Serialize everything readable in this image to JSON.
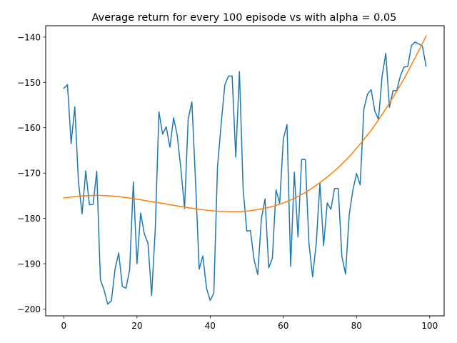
{
  "chart_data": {
    "type": "line",
    "title": "Average return for every 100 episode vs with alpha = 0.05",
    "xlabel": "",
    "ylabel": "",
    "xlim": [
      -4.95,
      103.95
    ],
    "ylim": [
      -201.5,
      -137.5
    ],
    "xticks": [
      0,
      20,
      40,
      60,
      80,
      100
    ],
    "yticks": [
      -200,
      -190,
      -180,
      -170,
      -160,
      -150,
      -140
    ],
    "grid": false,
    "legend": "none",
    "series": [
      {
        "color": "#1f77b4",
        "x": [
          0,
          1,
          2,
          3,
          4,
          5,
          6,
          7,
          8,
          9,
          10,
          11,
          12,
          13,
          14,
          15,
          16,
          17,
          18,
          19,
          20,
          21,
          22,
          23,
          24,
          25,
          26,
          27,
          28,
          29,
          30,
          31,
          32,
          33,
          34,
          35,
          36,
          37,
          38,
          39,
          40,
          41,
          42,
          43,
          44,
          45,
          46,
          47,
          48,
          49,
          50,
          51,
          52,
          53,
          54,
          55,
          56,
          57,
          58,
          59,
          60,
          61,
          62,
          63,
          64,
          65,
          66,
          67,
          68,
          69,
          70,
          71,
          72,
          73,
          74,
          75,
          76,
          77,
          78,
          79,
          80,
          81,
          82,
          83,
          84,
          85,
          86,
          87,
          88,
          89,
          90,
          91,
          92,
          93,
          94,
          95,
          96,
          97,
          98,
          99
        ],
        "y": [
          -151.3,
          -150.5,
          -163.5,
          -155.4,
          -171.9,
          -179.0,
          -169.5,
          -177.0,
          -176.9,
          -169.6,
          -193.5,
          -195.8,
          -198.9,
          -198.2,
          -191.2,
          -187.6,
          -195.0,
          -195.4,
          -191.3,
          -172.0,
          -190.0,
          -178.8,
          -183.4,
          -185.5,
          -197.0,
          -182.3,
          -156.5,
          -161.4,
          -159.8,
          -164.3,
          -157.8,
          -161.7,
          -169.1,
          -177.8,
          -158.0,
          -154.3,
          -171.8,
          -191.2,
          -188.3,
          -195.4,
          -198.1,
          -196.5,
          -168.7,
          -159.2,
          -150.6,
          -148.6,
          -148.6,
          -166.5,
          -147.6,
          -173.3,
          -182.8,
          -182.7,
          -189.1,
          -192.4,
          -180.1,
          -175.7,
          -190.9,
          -188.8,
          -173.7,
          -176.7,
          -162.5,
          -159.3,
          -190.6,
          -169.8,
          -184.1,
          -167.0,
          -167.0,
          -185.5,
          -192.9,
          -185.4,
          -172.2,
          -186.0,
          -176.6,
          -178.0,
          -173.4,
          -173.4,
          -188.4,
          -192.3,
          -179.2,
          -173.8,
          -170.1,
          -172.6,
          -155.9,
          -152.6,
          -151.6,
          -156.3,
          -158.2,
          -148.6,
          -143.6,
          -155.5,
          -151.8,
          -151.8,
          -148.5,
          -146.6,
          -146.5,
          -141.9,
          -141.1,
          -141.5,
          -142.0,
          -146.4
        ]
      },
      {
        "color": "#ff7f0e",
        "x": [
          0,
          3,
          6,
          9,
          12,
          15,
          18,
          21,
          24,
          27,
          30,
          33,
          36,
          39,
          42,
          45,
          48,
          51,
          54,
          57,
          60,
          63,
          66,
          69,
          72,
          75,
          78,
          81,
          84,
          87,
          90,
          93,
          96,
          99
        ],
        "y": [
          -175.5,
          -175.2,
          -175.0,
          -174.9,
          -175.0,
          -175.2,
          -175.5,
          -175.9,
          -176.3,
          -176.7,
          -177.1,
          -177.5,
          -177.9,
          -178.2,
          -178.4,
          -178.5,
          -178.5,
          -178.3,
          -177.9,
          -177.4,
          -176.6,
          -175.6,
          -174.3,
          -172.7,
          -170.9,
          -168.8,
          -166.4,
          -163.6,
          -160.6,
          -157.1,
          -153.3,
          -149.2,
          -144.6,
          -139.8
        ]
      }
    ]
  }
}
